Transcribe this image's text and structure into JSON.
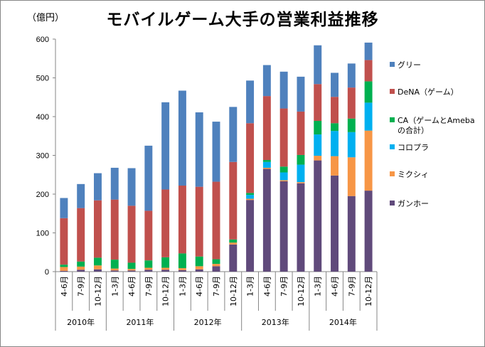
{
  "chart_data": {
    "type": "bar",
    "stacked": true,
    "title": "モバイルゲーム大手の営業利益推移",
    "unit_label": "（億円）",
    "ylim": [
      0,
      600
    ],
    "yticks": [
      0,
      100,
      200,
      300,
      400,
      500,
      600
    ],
    "categories": [
      "4-6月",
      "7-9月",
      "10-12月",
      "1-3月",
      "4-6月",
      "7-9月",
      "10-12月",
      "1-3月",
      "4-6月",
      "7-9月",
      "10-12月",
      "1-3月",
      "4-6月",
      "7-9月",
      "10-12月",
      "1-3月",
      "4-6月",
      "7-9月",
      "10-12月"
    ],
    "year_groups": [
      {
        "label": "2010年",
        "count": 3
      },
      {
        "label": "2011年",
        "count": 4
      },
      {
        "label": "2012年",
        "count": 4
      },
      {
        "label": "2013年",
        "count": 4
      },
      {
        "label": "2014年",
        "count": 4
      }
    ],
    "legend_position": "right",
    "series": [
      {
        "name": "ガンホー",
        "color": "#604A7B",
        "values": [
          2,
          5,
          6,
          3,
          3,
          5,
          5,
          4,
          6,
          14,
          70,
          185,
          265,
          233,
          228,
          287,
          248,
          195,
          209
        ]
      },
      {
        "name": "ミクシィ",
        "color": "#F79646",
        "values": [
          10,
          8,
          10,
          5,
          4,
          5,
          5,
          5,
          8,
          6,
          5,
          3,
          3,
          3,
          3,
          12,
          50,
          100,
          155
        ]
      },
      {
        "name": "コロプラ",
        "color": "#00B0F0",
        "values": [
          0,
          0,
          0,
          0,
          0,
          0,
          0,
          0,
          0,
          0,
          0,
          10,
          15,
          20,
          45,
          55,
          65,
          65,
          72
        ]
      },
      {
        "name": "CAゲームとAmeba\nの合計",
        "color": "#00B050",
        "values": [
          6,
          13,
          20,
          23,
          16,
          19,
          27,
          38,
          25,
          12,
          8,
          5,
          5,
          15,
          25,
          35,
          20,
          35,
          55
        ]
      },
      {
        "name": "DeNA（ゲーム）",
        "color": "#C0504D",
        "values": [
          120,
          138,
          148,
          155,
          147,
          128,
          175,
          175,
          180,
          200,
          200,
          180,
          165,
          150,
          112,
          95,
          68,
          80,
          55
        ]
      },
      {
        "name": "グリー",
        "color": "#4F81BD",
        "values": [
          52,
          62,
          70,
          82,
          97,
          168,
          225,
          245,
          192,
          155,
          142,
          110,
          80,
          95,
          90,
          100,
          62,
          62,
          45
        ]
      }
    ],
    "legend_order": [
      "グリー",
      "DeNA（ゲーム）",
      "CAゲームとAmeba\nの合計",
      "コロプラ",
      "ミクシィ",
      "ガンホー"
    ],
    "legend_labels": {
      "グリー": [
        "グリー"
      ],
      "DeNA（ゲーム）": [
        "DeNA（ゲーム）"
      ],
      "CAゲームとAmeba\nの合計": [
        "CA（ゲームとAmeba",
        "の合計）"
      ],
      "コロプラ": [
        "コロプラ"
      ],
      "ミクシィ": [
        "ミクシィ"
      ],
      "ガンホー": [
        "ガンホー"
      ]
    }
  }
}
